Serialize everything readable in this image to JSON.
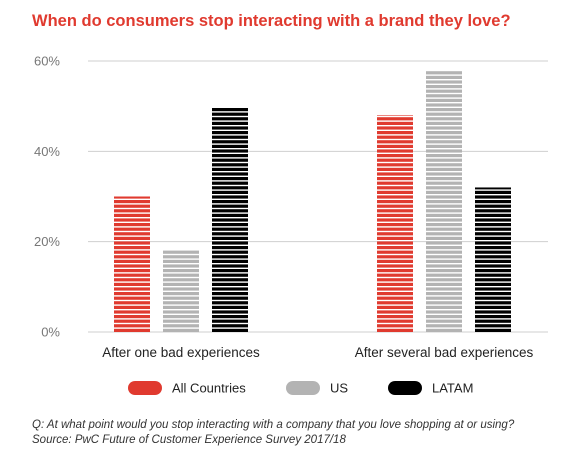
{
  "title": "When do consumers stop interacting with a brand they love?",
  "chart_data": {
    "type": "bar",
    "categories": [
      "After one bad experiences",
      "After several bad experiences"
    ],
    "series": [
      {
        "name": "All Countries",
        "values": [
          30,
          48
        ],
        "color": "#e03a2f"
      },
      {
        "name": "US",
        "values": [
          18,
          58
        ],
        "color": "#b3b3b3"
      },
      {
        "name": "LATAM",
        "values": [
          50,
          32
        ],
        "color": "#000000"
      }
    ],
    "ylim": [
      0,
      60
    ],
    "yticks": [
      0,
      20,
      40,
      60
    ],
    "ytick_labels": [
      "0%",
      "20%",
      "40%",
      "60%"
    ],
    "grid": true,
    "legend": "bottom"
  },
  "footnote": {
    "question": "Q: At what point would you stop interacting with a company that you love shopping at or using?",
    "source": "Source: PwC Future of Customer Experience Survey 2017/18"
  }
}
